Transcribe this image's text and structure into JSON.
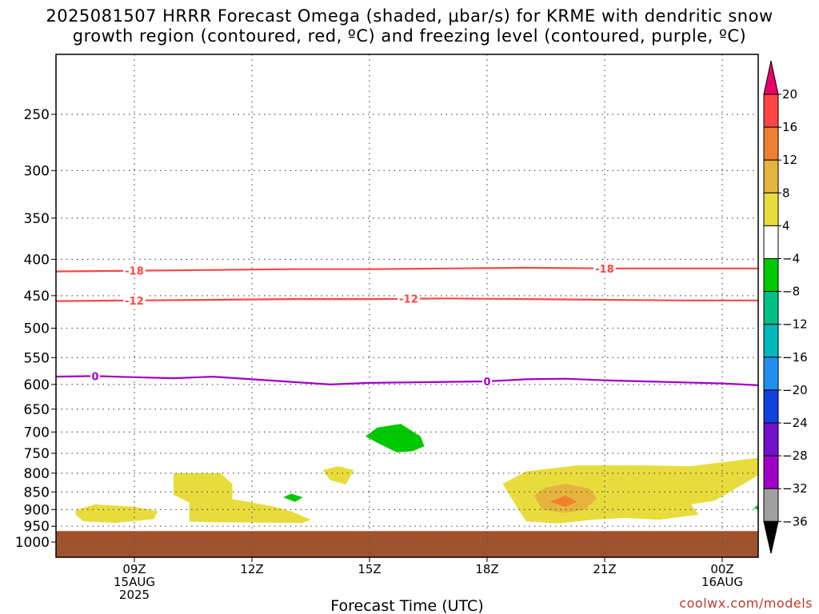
{
  "title": {
    "line1": "2025081507 HRRR Forecast Omega (shaded, μbar/s) for KRME with dendritic snow",
    "line2": "growth region (contoured, red, ºC) and freezing level (contoured, purple, ºC)"
  },
  "credit": "coolwx.com/models",
  "chart_data": {
    "type": "heatmap",
    "title": "2025081507 HRRR Forecast Omega (shaded, μbar/s) for KRME with dendritic snow growth region (contoured, red, ºC) and freezing level (contoured, purple, ºC)",
    "xlabel": "Forecast Time (UTC)",
    "ylabel": "",
    "x_range_hours": [
      7,
      25
    ],
    "x_ticks": [
      {
        "hour": 9,
        "lines": [
          "09Z",
          "15AUG",
          "2025"
        ]
      },
      {
        "hour": 12,
        "lines": [
          "12Z"
        ]
      },
      {
        "hour": 15,
        "lines": [
          "15Z"
        ]
      },
      {
        "hour": 18,
        "lines": [
          "18Z"
        ]
      },
      {
        "hour": 21,
        "lines": [
          "21Z"
        ]
      },
      {
        "hour": 24,
        "lines": [
          "00Z",
          "16AUG"
        ]
      }
    ],
    "y_axis": {
      "units": "hPa",
      "range": [
        1050,
        200
      ],
      "reversed": true,
      "ticks": [
        "250",
        "300",
        "350",
        "400",
        "450",
        "500",
        "550",
        "600",
        "650",
        "700",
        "750",
        "800",
        "850",
        "900",
        "950",
        "1000"
      ]
    },
    "grid": true,
    "colorbar": {
      "labels": [
        "20",
        "16",
        "12",
        "8",
        "4",
        "−4",
        "−8",
        "−12",
        "−16",
        "−20",
        "−24",
        "−28",
        "−32",
        "−36"
      ],
      "colors": [
        "#e8006a",
        "#ff4545",
        "#f08030",
        "#e6b43c",
        "#e8dc3c",
        "#ffffff",
        "#00c800",
        "#00c088",
        "#00b8c0",
        "#2090f0",
        "#1040e0",
        "#7010c8",
        "#a000c8",
        "#a0a0a0",
        "#000000"
      ]
    },
    "contours": [
      {
        "color": "#ff4545",
        "label": "-18",
        "points": [
          [
            7,
            416
          ],
          [
            9,
            415
          ],
          [
            11,
            414
          ],
          [
            13,
            413
          ],
          [
            15,
            413
          ],
          [
            17,
            412
          ],
          [
            19,
            411
          ],
          [
            21,
            412
          ],
          [
            23,
            412
          ],
          [
            25,
            412
          ]
        ]
      },
      {
        "color": "#ff4545",
        "label": "-12",
        "points": [
          [
            7,
            458
          ],
          [
            9,
            457
          ],
          [
            11,
            456
          ],
          [
            13,
            455
          ],
          [
            15,
            455
          ],
          [
            17,
            454
          ],
          [
            19,
            455
          ],
          [
            21,
            456
          ],
          [
            23,
            457
          ],
          [
            25,
            457
          ]
        ]
      },
      {
        "color": "#a000c8",
        "label": "0",
        "points": [
          [
            7,
            585
          ],
          [
            8,
            584
          ],
          [
            9,
            586
          ],
          [
            10,
            588
          ],
          [
            11,
            585
          ],
          [
            12,
            590
          ],
          [
            13,
            595
          ],
          [
            14,
            600
          ],
          [
            15,
            597
          ],
          [
            16,
            596
          ],
          [
            17,
            595
          ],
          [
            18,
            594
          ],
          [
            19,
            590
          ],
          [
            20,
            589
          ],
          [
            21,
            592
          ],
          [
            22,
            594
          ],
          [
            23,
            596
          ],
          [
            24,
            598
          ],
          [
            25,
            602
          ]
        ]
      }
    ],
    "omega_regions": [
      {
        "value_class": "4 to 8",
        "color": "#e8dc3c",
        "points": [
          [
            7.5,
            902
          ],
          [
            8,
            885
          ],
          [
            9,
            892
          ],
          [
            9.6,
            905
          ],
          [
            9.5,
            928
          ],
          [
            8.5,
            940
          ],
          [
            7.7,
            935
          ],
          [
            7.5,
            915
          ]
        ]
      },
      {
        "value_class": "4 to 8",
        "color": "#e8dc3c",
        "points": [
          [
            10,
            800
          ],
          [
            11.2,
            800
          ],
          [
            11.5,
            828
          ],
          [
            11.5,
            870
          ],
          [
            12.5,
            890
          ],
          [
            13,
            905
          ],
          [
            13.5,
            930
          ],
          [
            13.3,
            940
          ],
          [
            11,
            938
          ],
          [
            10.4,
            936
          ],
          [
            10.4,
            880
          ],
          [
            10,
            858
          ]
        ]
      },
      {
        "value_class": "4 to 8",
        "color": "#e8dc3c",
        "points": [
          [
            13.8,
            792
          ],
          [
            14.2,
            782
          ],
          [
            14.6,
            792
          ],
          [
            14.4,
            830
          ],
          [
            14,
            818
          ]
        ]
      },
      {
        "value_class": "4 to 8",
        "color": "#e8dc3c",
        "points": [
          [
            18.4,
            828
          ],
          [
            19,
            795
          ],
          [
            20.3,
            780
          ],
          [
            22,
            780
          ],
          [
            23.2,
            782
          ],
          [
            25,
            760
          ],
          [
            25,
            800
          ],
          [
            24.6,
            825
          ],
          [
            23.8,
            875
          ],
          [
            23.2,
            885
          ],
          [
            23.4,
            915
          ],
          [
            22.4,
            930
          ],
          [
            21.5,
            925
          ],
          [
            20.7,
            930
          ],
          [
            19.8,
            942
          ],
          [
            19,
            935
          ],
          [
            18.8,
            900
          ]
        ]
      },
      {
        "value_class": "8 to 12",
        "color": "#e6b43c",
        "points": [
          [
            19.2,
            860
          ],
          [
            19.5,
            838
          ],
          [
            20,
            828
          ],
          [
            20.6,
            840
          ],
          [
            20.8,
            868
          ],
          [
            20.5,
            900
          ],
          [
            20,
            910
          ],
          [
            19.4,
            900
          ]
        ]
      },
      {
        "value_class": "12 to 16",
        "color": "#f08030",
        "points": [
          [
            19.6,
            878
          ],
          [
            20,
            860
          ],
          [
            20.3,
            878
          ],
          [
            20,
            892
          ]
        ]
      },
      {
        "value_class": "-8 to -4",
        "color": "#00c800",
        "points": [
          [
            14.9,
            710
          ],
          [
            15.2,
            690
          ],
          [
            15.8,
            682
          ],
          [
            16.3,
            710
          ],
          [
            16.4,
            733
          ],
          [
            16.1,
            745
          ],
          [
            15.7,
            748
          ],
          [
            15.2,
            725
          ]
        ]
      },
      {
        "value_class": "-8 to -4",
        "color": "#00c800",
        "points": [
          [
            12.8,
            865
          ],
          [
            13,
            855
          ],
          [
            13.3,
            865
          ],
          [
            13.1,
            878
          ]
        ]
      },
      {
        "value_class": "-8 to -4",
        "color": "#00c800",
        "points": [
          [
            24.8,
            895
          ],
          [
            25,
            882
          ],
          [
            25,
            905
          ]
        ]
      }
    ],
    "surface_band": {
      "color": "#a0522d",
      "from_hpa": 965,
      "to_hpa": 1050
    }
  }
}
